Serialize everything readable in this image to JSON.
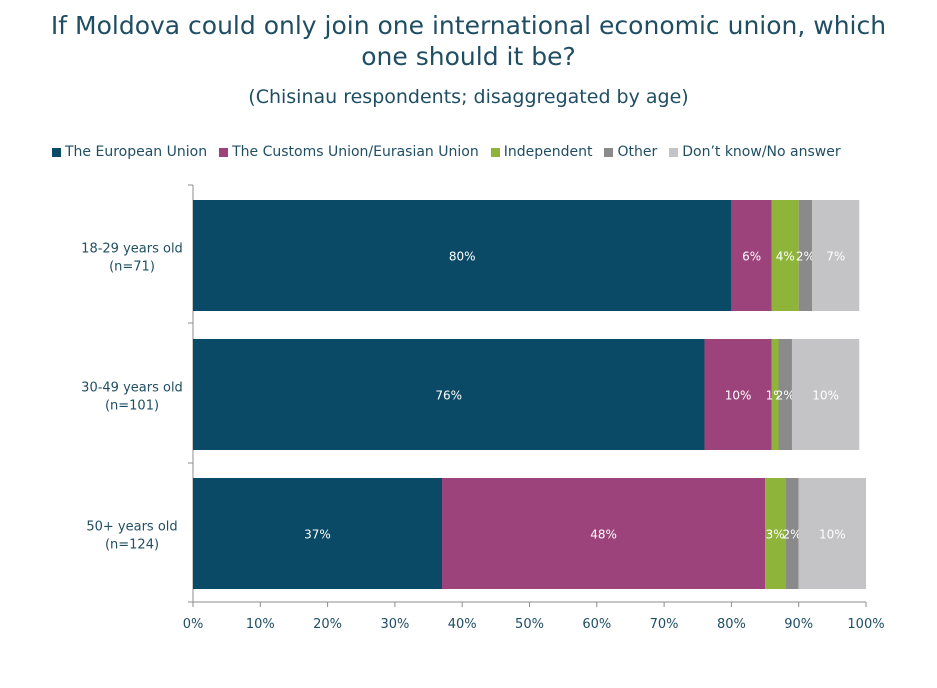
{
  "title_line1": "If Moldova could only join one international economic union, which",
  "title_line2": "one should it be?",
  "subtitle": "(Chisinau respondents; disaggregated by age)",
  "chart_data": {
    "type": "bar",
    "orientation": "horizontal",
    "stacked": true,
    "percent_stacked": true,
    "legend_placement": "top",
    "grid": false,
    "xlim": [
      0,
      100
    ],
    "x_ticks": [
      "0%",
      "10%",
      "20%",
      "30%",
      "40%",
      "50%",
      "60%",
      "70%",
      "80%",
      "90%",
      "100%"
    ],
    "categories": [
      {
        "line1": "18-29 years old",
        "line2": "(n=71)"
      },
      {
        "line1": "30-49 years old",
        "line2": "(n=101)"
      },
      {
        "line1": "50+ years old",
        "line2": "(n=124)"
      }
    ],
    "series": [
      {
        "name": "The European Union",
        "color": "#0b4a66",
        "values": [
          80,
          76,
          37
        ],
        "labels": [
          "80%",
          "76%",
          "37%"
        ]
      },
      {
        "name": "The Customs Union/Eurasian Union",
        "color": "#9c437c",
        "values": [
          6,
          10,
          48
        ],
        "labels": [
          "6%",
          "10%",
          "48%"
        ]
      },
      {
        "name": "Independent",
        "color": "#8fb43a",
        "values": [
          4,
          1,
          3
        ],
        "labels": [
          "4%",
          "1%",
          "3%"
        ]
      },
      {
        "name": "Other",
        "color": "#8a8a8a",
        "values": [
          2,
          2,
          2
        ],
        "labels": [
          "2%",
          "2%",
          "2%"
        ]
      },
      {
        "name": "Don’t know/No answer",
        "color": "#c4c4c7",
        "values": [
          7,
          10,
          10
        ],
        "labels": [
          "7%",
          "10%",
          "10%"
        ]
      }
    ]
  }
}
